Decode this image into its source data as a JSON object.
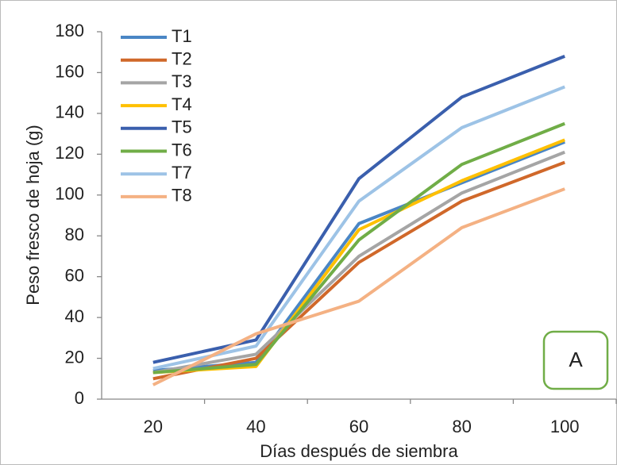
{
  "chart_data": {
    "type": "line",
    "y_label": "Peso fresco de hoja (g)",
    "x_label": "Días después de siembra",
    "annotation": "A",
    "categories": [
      "20",
      "40",
      "60",
      "80",
      "100"
    ],
    "series": [
      {
        "name": "T1",
        "color": "#4a86c5",
        "values": [
          14,
          18,
          86,
          106,
          126
        ]
      },
      {
        "name": "T2",
        "color": "#d0682a",
        "values": [
          10,
          20,
          67,
          97,
          116
        ]
      },
      {
        "name": "T3",
        "color": "#a5a5a5",
        "values": [
          13,
          22,
          70,
          101,
          121
        ]
      },
      {
        "name": "T4",
        "color": "#ffc000",
        "values": [
          13,
          16,
          83,
          107,
          127
        ]
      },
      {
        "name": "T5",
        "color": "#3a5fad",
        "values": [
          18,
          29,
          108,
          148,
          168
        ]
      },
      {
        "name": "T6",
        "color": "#70ad47",
        "values": [
          13,
          17,
          78,
          115,
          135
        ]
      },
      {
        "name": "T7",
        "color": "#9dc3e6",
        "values": [
          15,
          26,
          97,
          133,
          153
        ]
      },
      {
        "name": "T8",
        "color": "#f4b183",
        "values": [
          7,
          32,
          48,
          84,
          103
        ]
      }
    ],
    "ylim": [
      0,
      180
    ],
    "yticks": [
      0,
      20,
      40,
      60,
      80,
      100,
      120,
      140,
      160,
      180
    ],
    "grid": false,
    "legend": "top-left"
  }
}
